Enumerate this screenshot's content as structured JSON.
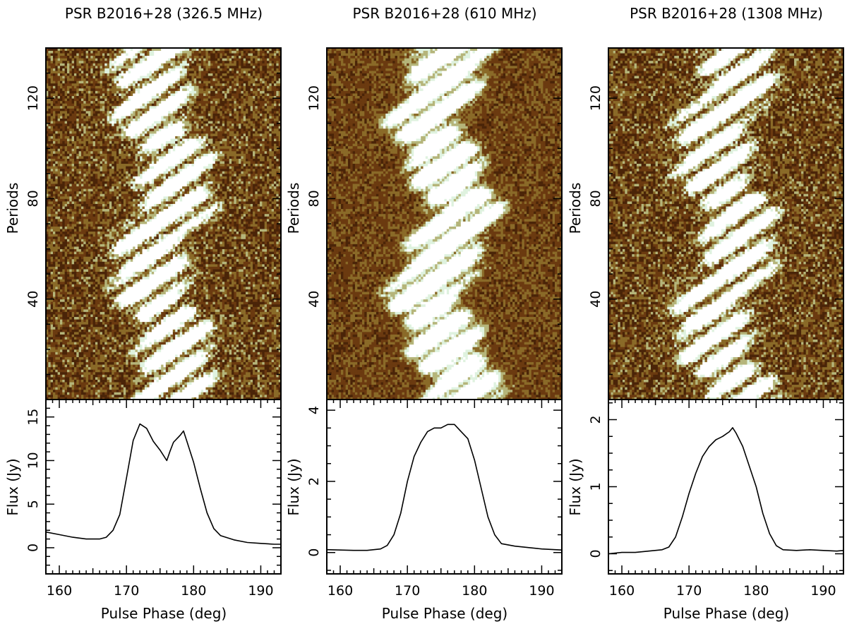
{
  "chart_data": [
    {
      "type": "heatmap",
      "title": "PSR B2016+28 (326.5 MHz)",
      "waterfall": {
        "ylabel": "Periods",
        "ylim": [
          0,
          140
        ],
        "yticks": [
          40,
          80,
          120
        ],
        "colormap": [
          "#4a2408",
          "#6b3a10",
          "#8a6a28",
          "#b5b57a",
          "#dff2df",
          "#ffffff"
        ]
      },
      "profile": {
        "type": "line",
        "xlabel": "Pulse Phase (deg)",
        "ylabel": "Flux (Jy)",
        "xlim": [
          158,
          193
        ],
        "ylim": [
          -3,
          17
        ],
        "xticks": [
          160,
          170,
          180,
          190
        ],
        "yticks": [
          0,
          5,
          10,
          15
        ],
        "x": [
          158,
          160,
          162,
          164,
          166,
          167,
          168,
          169,
          170,
          171,
          172,
          173,
          174,
          175,
          176,
          176.5,
          177,
          178,
          178.5,
          179,
          180,
          181,
          182,
          183,
          184,
          186,
          188,
          190,
          192,
          193
        ],
        "y": [
          1.8,
          1.5,
          1.2,
          1.0,
          1.0,
          1.2,
          2.0,
          3.8,
          8.0,
          12.3,
          14.2,
          13.7,
          12.2,
          11.2,
          10.0,
          11.1,
          12.1,
          12.9,
          13.4,
          12.2,
          9.8,
          6.8,
          4.0,
          2.2,
          1.4,
          0.9,
          0.6,
          0.5,
          0.4,
          0.4
        ]
      }
    },
    {
      "type": "heatmap",
      "title": "PSR B2016+28 (610 MHz)",
      "waterfall": {
        "ylabel": "Periods",
        "ylim": [
          0,
          140
        ],
        "yticks": [
          40,
          80,
          120
        ],
        "colormap": [
          "#4a2408",
          "#6b3a10",
          "#8a6a28",
          "#b5b57a",
          "#dff2df",
          "#ffffff"
        ]
      },
      "profile": {
        "type": "line",
        "xlabel": "Pulse Phase (deg)",
        "ylabel": "Flux (Jy)",
        "xlim": [
          158,
          193
        ],
        "ylim": [
          -0.6,
          4.3
        ],
        "xticks": [
          160,
          170,
          180,
          190
        ],
        "yticks": [
          0,
          2,
          4
        ],
        "x": [
          158,
          160,
          162,
          164,
          166,
          167,
          168,
          169,
          170,
          171,
          172,
          173,
          174,
          175,
          176,
          177,
          178,
          179,
          180,
          181,
          182,
          183,
          184,
          186,
          188,
          190,
          192,
          193
        ],
        "y": [
          0.08,
          0.07,
          0.06,
          0.06,
          0.1,
          0.2,
          0.5,
          1.1,
          2.0,
          2.7,
          3.1,
          3.4,
          3.5,
          3.5,
          3.6,
          3.6,
          3.4,
          3.2,
          2.6,
          1.8,
          1.0,
          0.5,
          0.25,
          0.18,
          0.14,
          0.1,
          0.08,
          0.07
        ]
      }
    },
    {
      "type": "heatmap",
      "title": "PSR B2016+28 (1308 MHz)",
      "waterfall": {
        "ylabel": "Periods",
        "ylim": [
          0,
          140
        ],
        "yticks": [
          40,
          80,
          120
        ],
        "colormap": [
          "#4a2408",
          "#6b3a10",
          "#8a6a28",
          "#b5b57a",
          "#dff2df",
          "#ffffff"
        ]
      },
      "profile": {
        "type": "line",
        "xlabel": "Pulse Phase (deg)",
        "ylabel": "Flux (Jy)",
        "xlim": [
          158,
          193
        ],
        "ylim": [
          -0.3,
          2.3
        ],
        "xticks": [
          160,
          170,
          180,
          190
        ],
        "yticks": [
          0,
          1,
          2
        ],
        "x": [
          158,
          160,
          162,
          164,
          166,
          167,
          168,
          169,
          170,
          171,
          172,
          173,
          174,
          175,
          176,
          176.5,
          177,
          178,
          179,
          180,
          181,
          182,
          183,
          184,
          186,
          188,
          190,
          192,
          193
        ],
        "y": [
          0.0,
          0.02,
          0.02,
          0.04,
          0.06,
          0.1,
          0.25,
          0.55,
          0.9,
          1.2,
          1.45,
          1.6,
          1.7,
          1.75,
          1.82,
          1.88,
          1.8,
          1.6,
          1.3,
          1.0,
          0.6,
          0.3,
          0.12,
          0.06,
          0.05,
          0.06,
          0.05,
          0.04,
          0.05
        ]
      }
    }
  ]
}
